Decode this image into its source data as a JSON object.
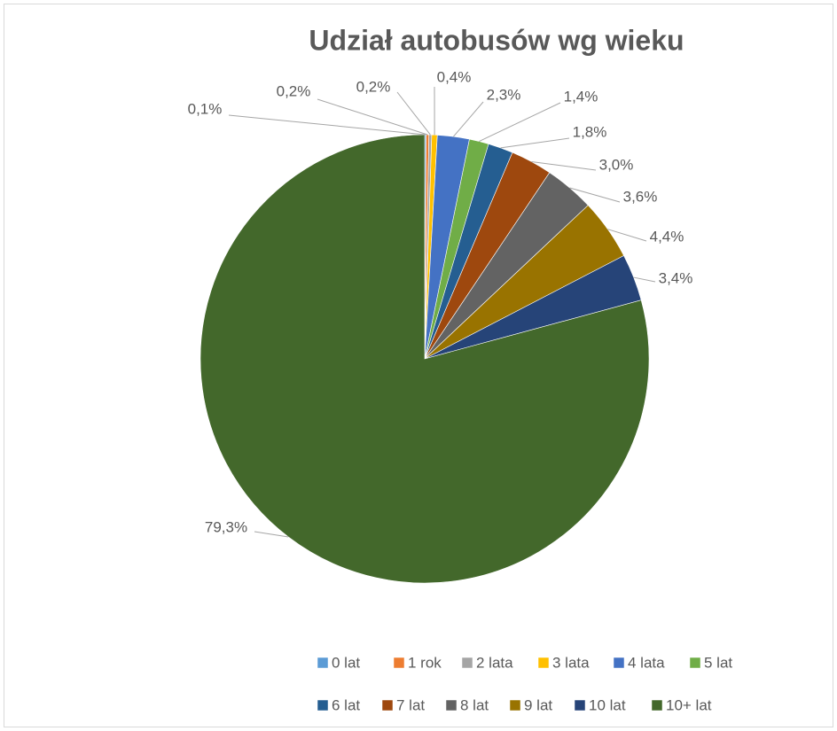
{
  "chart_data": {
    "type": "pie",
    "title": "Udział autobusów wg wieku",
    "categories": [
      "0 lat",
      "1 rok",
      "2 lata",
      "3 lata",
      "4 lata",
      "5 lat",
      "6 lat",
      "7 lat",
      "8 lat",
      "9 lat",
      "10 lat",
      "10+ lat"
    ],
    "values": [
      0.1,
      0.2,
      0.2,
      0.4,
      2.3,
      1.4,
      1.8,
      3.0,
      3.6,
      4.4,
      3.4,
      79.3
    ],
    "value_labels": [
      "0,1%",
      "0,2%",
      "0,2%",
      "0,4%",
      "2,3%",
      "1,4%",
      "1,8%",
      "3,0%",
      "3,6%",
      "4,4%",
      "3,4%",
      "79,3%"
    ],
    "colors": [
      "#5b9bd5",
      "#ed7d31",
      "#a5a5a5",
      "#ffc000",
      "#4472c4",
      "#70ad47",
      "#255e91",
      "#9e480e",
      "#636363",
      "#997300",
      "#264478",
      "#43682b"
    ],
    "legend": "bottom"
  }
}
